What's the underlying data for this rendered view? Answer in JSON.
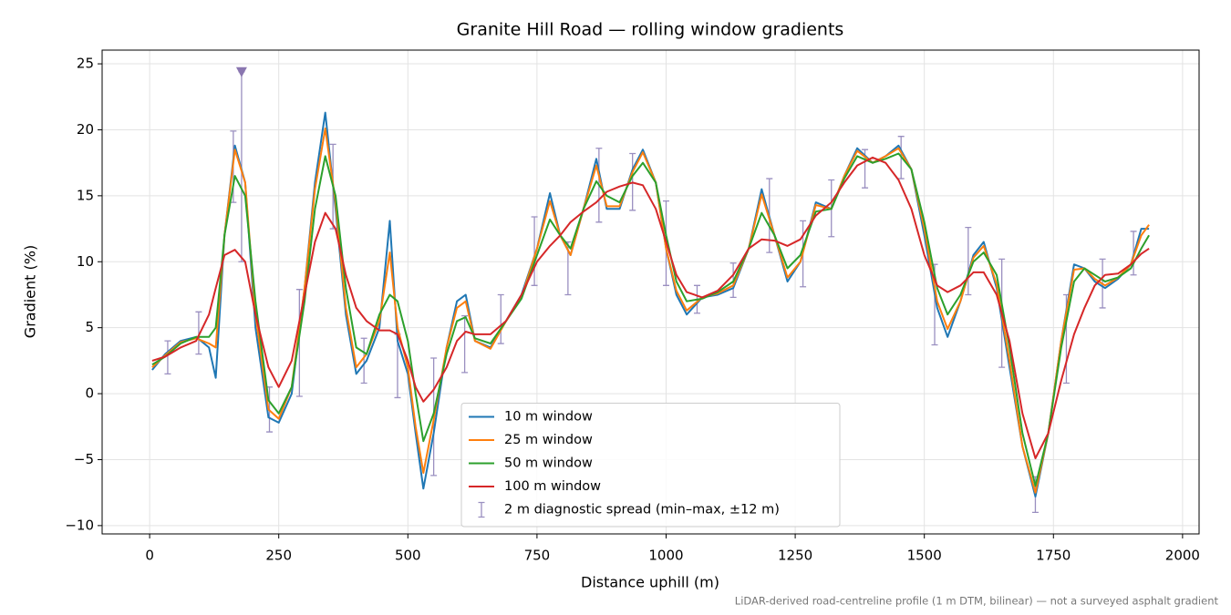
{
  "chart_data": {
    "type": "line",
    "title": "Granite Hill Road — rolling window gradients",
    "xlabel": "Distance uphill (m)",
    "ylabel": "Gradient (%)",
    "footnote": "LiDAR-derived road-centreline profile (1 m DTM, bilinear) — not a surveyed asphalt gradient",
    "xlim": [
      -92,
      2032
    ],
    "ylim": [
      -10.63,
      26.04
    ],
    "xticks": [
      0,
      250,
      500,
      750,
      1000,
      1250,
      1500,
      1750,
      2000
    ],
    "yticks": [
      {
        "value": -10,
        "label": "−10"
      },
      {
        "value": -5,
        "label": "−5"
      },
      0,
      5,
      10,
      15,
      20,
      25
    ],
    "grid": true,
    "legend": "lower center",
    "x": [
      5,
      30,
      60,
      90,
      115,
      128,
      145,
      165,
      185,
      205,
      230,
      250,
      275,
      300,
      320,
      340,
      360,
      380,
      400,
      420,
      445,
      465,
      480,
      500,
      515,
      530,
      550,
      575,
      595,
      612,
      630,
      660,
      690,
      720,
      750,
      775,
      795,
      815,
      840,
      865,
      885,
      910,
      935,
      955,
      980,
      1000,
      1020,
      1040,
      1070,
      1100,
      1130,
      1160,
      1185,
      1210,
      1235,
      1260,
      1290,
      1320,
      1345,
      1370,
      1400,
      1425,
      1450,
      1475,
      1500,
      1525,
      1545,
      1570,
      1595,
      1615,
      1640,
      1665,
      1690,
      1715,
      1740,
      1765,
      1790,
      1810,
      1830,
      1850,
      1875,
      1900,
      1920,
      1935
    ],
    "series": [
      {
        "name": "10 m window",
        "color": "#1f77b4",
        "values": [
          1.8,
          3.0,
          4.0,
          4.3,
          3.5,
          1.2,
          12,
          18.8,
          16,
          5,
          -1.8,
          -2.2,
          0,
          8,
          16,
          21.3,
          14,
          6,
          1.5,
          2.5,
          5,
          13.1,
          4,
          1.5,
          -3,
          -7.2,
          -3,
          3.5,
          7,
          7.5,
          4,
          3.5,
          5.5,
          7.5,
          11,
          15.2,
          12,
          10.5,
          14,
          17.8,
          14,
          14,
          17,
          18.5,
          16,
          11,
          7.5,
          6.0,
          7.3,
          7.5,
          8.0,
          11,
          15.5,
          12,
          8.5,
          10,
          14.5,
          14,
          16.5,
          18.6,
          17.5,
          18,
          18.8,
          17,
          12,
          6.5,
          4.3,
          7,
          10.5,
          11.5,
          8,
          2,
          -4,
          -7.8,
          -3,
          4,
          9.8,
          9.5,
          8.5,
          8.0,
          8.7,
          9.8,
          12.5,
          12.5
        ]
      },
      {
        "name": "25 m window",
        "color": "#ff7f0e",
        "values": [
          2,
          2.9,
          3.9,
          4.2,
          3.8,
          3.5,
          12,
          18.5,
          16,
          6,
          -1.2,
          -1.9,
          0.5,
          8,
          15.5,
          20.1,
          14.5,
          6.5,
          2.0,
          3,
          5.5,
          10.7,
          5,
          2,
          -2.5,
          -6,
          -2,
          3.5,
          6.5,
          7.0,
          4,
          3.4,
          5.5,
          7.3,
          11,
          14.6,
          12,
          10.5,
          14,
          17.3,
          14.2,
          14.2,
          16.8,
          18.3,
          16,
          11,
          7.8,
          6.3,
          7.3,
          7.6,
          8.2,
          11,
          15.1,
          12,
          8.8,
          10,
          14.3,
          14,
          16.5,
          18.4,
          17.5,
          18,
          18.6,
          17,
          12.5,
          7,
          4.9,
          7,
          10.3,
          11.2,
          8.3,
          2.5,
          -4,
          -7.5,
          -3,
          4,
          9.4,
          9.5,
          8.7,
          8.2,
          8.8,
          9.8,
          12,
          12.8
        ]
      },
      {
        "name": "50 m window",
        "color": "#2ca02c",
        "values": [
          2.2,
          2.8,
          3.8,
          4.3,
          4.3,
          5,
          12,
          16.5,
          15,
          7,
          -0.5,
          -1.5,
          0.5,
          7,
          14,
          18,
          15,
          8,
          3.5,
          3.0,
          6,
          7.5,
          7,
          4,
          0,
          -3.6,
          -1.5,
          3,
          5.5,
          5.8,
          4.2,
          3.8,
          5.5,
          7.2,
          10.5,
          13.2,
          12,
          11,
          14,
          16.1,
          15,
          14.5,
          16.5,
          17.5,
          16,
          12,
          8.5,
          7.0,
          7.2,
          7.7,
          8.5,
          11,
          13.7,
          12,
          9.5,
          10.5,
          13.8,
          14,
          16.3,
          18,
          17.5,
          17.8,
          18.2,
          17,
          13,
          8,
          6,
          7.5,
          10,
          10.7,
          9,
          3.5,
          -3,
          -7,
          -3,
          3.5,
          8.5,
          9.5,
          9,
          8.5,
          8.8,
          9.5,
          11,
          12
        ]
      },
      {
        "name": "100 m window",
        "color": "#d62728",
        "values": [
          2.5,
          2.8,
          3.5,
          4.0,
          6,
          8,
          10.5,
          10.9,
          10,
          6,
          2,
          0.5,
          2.5,
          7.5,
          11.5,
          13.7,
          12.5,
          9,
          6.5,
          5.5,
          4.8,
          4.8,
          4.5,
          2.5,
          0.5,
          -0.6,
          0.3,
          2,
          4,
          4.7,
          4.5,
          4.5,
          5.5,
          7.5,
          10,
          11.2,
          12,
          13,
          13.8,
          14.5,
          15.3,
          15.7,
          16,
          15.8,
          14,
          11.5,
          9,
          7.7,
          7.3,
          7.8,
          9,
          11,
          11.7,
          11.6,
          11.2,
          11.7,
          13.5,
          14.5,
          16,
          17.3,
          17.9,
          17.5,
          16.2,
          14,
          10.5,
          8.2,
          7.7,
          8.2,
          9.2,
          9.2,
          7.5,
          4,
          -1.5,
          -4.9,
          -3,
          1,
          4.5,
          6.5,
          8.2,
          9,
          9.1,
          9.8,
          10.6,
          11
        ]
      }
    ],
    "errorbars": {
      "name": "2 m diagnostic spread (min–max, ±12 m)",
      "color": "#9a8fc0",
      "x": [
        35,
        95,
        162,
        178,
        232,
        290,
        355,
        415,
        480,
        550,
        610,
        680,
        745,
        810,
        870,
        935,
        1000,
        1060,
        1130,
        1200,
        1265,
        1320,
        1385,
        1455,
        1520,
        1585,
        1650,
        1715,
        1775,
        1845,
        1905
      ],
      "low": [
        1.5,
        3.0,
        14.5,
        10,
        -2.9,
        -0.2,
        12.5,
        0.8,
        -0.3,
        -6.2,
        1.6,
        3.8,
        8.2,
        7.5,
        13.0,
        13.9,
        8.2,
        6.1,
        7.3,
        10.7,
        8.1,
        11.9,
        15.6,
        16.3,
        3.7,
        7.5,
        2.0,
        -9.0,
        0.8,
        6.5,
        9.0
      ],
      "high": [
        4.0,
        6.2,
        19.9,
        24.4,
        0.5,
        7.9,
        18.9,
        4.2,
        4.5,
        2.7,
        5.9,
        7.5,
        13.4,
        11.5,
        18.6,
        18.2,
        14.6,
        8.2,
        9.9,
        16.3,
        13.1,
        16.2,
        18.5,
        19.5,
        9.8,
        12.6,
        10.2,
        -6.3,
        7.5,
        10.2,
        12.3
      ]
    }
  }
}
